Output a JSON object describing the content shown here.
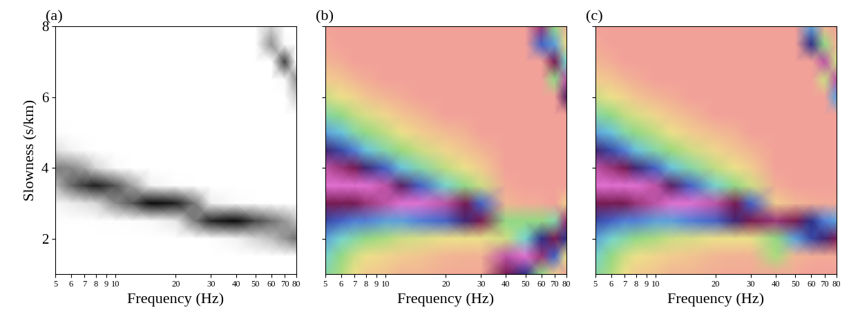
{
  "chart_data": [
    {
      "type": "heatmap",
      "title": "(a)",
      "xlabel": "Frequency (Hz)",
      "ylabel": "Slowness (s/km)",
      "log": "x",
      "xlim": [
        5,
        80
      ],
      "ylim": [
        1,
        8
      ],
      "xticks": [
        5,
        6,
        7,
        8,
        9,
        10,
        20,
        30,
        40,
        50,
        60,
        70,
        80
      ],
      "yticks": [
        2,
        4,
        6,
        8
      ],
      "zlim": [
        0,
        1
      ],
      "x": [
        5,
        6,
        7,
        8,
        10,
        12,
        15,
        20,
        25,
        30,
        40,
        50,
        60,
        70,
        80
      ],
      "y": [
        1,
        1.5,
        2,
        2.5,
        3,
        3.5,
        4,
        4.5,
        5,
        5.5,
        6,
        6.5,
        7,
        7.5,
        8
      ],
      "cells": [
        [
          0,
          0,
          0,
          0,
          0,
          0,
          0,
          0,
          0,
          0,
          0,
          0,
          0,
          0,
          0
        ],
        [
          0,
          0,
          0,
          0,
          0,
          0,
          0,
          0,
          0,
          0,
          0,
          0,
          0,
          0,
          0
        ],
        [
          0,
          0,
          0,
          0,
          0,
          0,
          0,
          0,
          0,
          0.01,
          0.1,
          0.26,
          0.37,
          0.5,
          0.64
        ],
        [
          0,
          0.01,
          0,
          0.01,
          0.02,
          0.02,
          0.04,
          0.17,
          0.6,
          0.88,
          0.97,
          0.78,
          0.64,
          0.5,
          0.37
        ],
        [
          0.06,
          0.15,
          0.2,
          0.26,
          0.54,
          0.72,
          0.97,
          0.9,
          0.6,
          0.13,
          0.03,
          0.01,
          0,
          0,
          0
        ],
        [
          0.39,
          0.66,
          0.82,
          0.9,
          0.74,
          0.48,
          0.1,
          0.02,
          0,
          0,
          0,
          0,
          0,
          0,
          0
        ],
        [
          0.58,
          0.55,
          0.45,
          0.26,
          0.04,
          0,
          0,
          0,
          0,
          0,
          0,
          0,
          0,
          0,
          0
        ],
        [
          0.22,
          0.09,
          0.03,
          0,
          0,
          0,
          0,
          0,
          0,
          0,
          0,
          0,
          0,
          0,
          0
        ],
        [
          0.02,
          0,
          0,
          0,
          0,
          0,
          0,
          0,
          0,
          0,
          0,
          0,
          0,
          0,
          0
        ],
        [
          0,
          0,
          0,
          0,
          0,
          0,
          0,
          0,
          0,
          0,
          0,
          0,
          0,
          0,
          0
        ],
        [
          0,
          0,
          0,
          0,
          0,
          0,
          0,
          0,
          0,
          0,
          0,
          0,
          0,
          0,
          0.3
        ],
        [
          0,
          0,
          0,
          0,
          0,
          0,
          0,
          0,
          0,
          0,
          0,
          0,
          0,
          0.05,
          0.51
        ],
        [
          0,
          0,
          0,
          0,
          0,
          0,
          0,
          0,
          0,
          0,
          0,
          0,
          0,
          0.8,
          0
        ],
        [
          0,
          0,
          0,
          0,
          0,
          0,
          0,
          0,
          0,
          0,
          0,
          0,
          0.51,
          0.05,
          0
        ],
        [
          0,
          0,
          0,
          0,
          0,
          0,
          0,
          0,
          0,
          0,
          0,
          0,
          0.3,
          0,
          0
        ]
      ]
    },
    {
      "type": "heatmap",
      "title": "(b)",
      "xlabel": "Frequency (Hz)",
      "tick_labels": "x",
      "log": "x",
      "xlim": [
        5,
        80
      ],
      "ylim": [
        1,
        8
      ],
      "xticks": [
        5,
        6,
        7,
        8,
        9,
        10,
        20,
        30,
        40,
        50,
        60,
        70,
        80
      ],
      "yticks": [
        2,
        4,
        6,
        8
      ],
      "zlim": [
        0,
        1
      ],
      "x": [
        5,
        6,
        7,
        8,
        10,
        12,
        15,
        20,
        25,
        30,
        40,
        50,
        60,
        70,
        80
      ],
      "y": [
        1,
        1.5,
        2,
        2.5,
        3,
        3.5,
        4,
        4.5,
        5,
        5.5,
        6,
        6.5,
        7,
        7.5,
        8
      ],
      "cells": [
        [
          0.35,
          0.25,
          0.15,
          0.1,
          0.08,
          0.05,
          0.05,
          0.03,
          0.02,
          0.02,
          0.85,
          0.7,
          0.3,
          0.1,
          0.02
        ],
        [
          0.4,
          0.3,
          0.2,
          0.15,
          0.12,
          0.1,
          0.08,
          0.05,
          0.04,
          0.04,
          0.95,
          1,
          0.9,
          0.6,
          0.15
        ],
        [
          0.5,
          0.4,
          0.35,
          0.3,
          0.25,
          0.2,
          0.18,
          0.15,
          0.15,
          0.15,
          0.2,
          0.4,
          0.7,
          0.85,
          0.7
        ],
        [
          0.65,
          0.6,
          0.55,
          0.55,
          0.5,
          0.5,
          0.55,
          0.6,
          0.75,
          0.85,
          0.3,
          0.3,
          0.3,
          0.35,
          0.9
        ],
        [
          0.85,
          0.85,
          0.85,
          0.9,
          0.95,
          1,
          1,
          0.95,
          0.85,
          0.6,
          0.05,
          0.03,
          0.02,
          0,
          0.1
        ],
        [
          1,
          1,
          1,
          1,
          0.95,
          0.8,
          0.6,
          0.4,
          0.3,
          0.2,
          0.02,
          0,
          0,
          0,
          0
        ],
        [
          0.95,
          0.9,
          0.85,
          0.75,
          0.6,
          0.45,
          0.35,
          0.22,
          0.15,
          0.1,
          0,
          0,
          0,
          0,
          0
        ],
        [
          0.75,
          0.65,
          0.55,
          0.45,
          0.35,
          0.28,
          0.2,
          0.12,
          0.08,
          0.05,
          0,
          0,
          0,
          0,
          0
        ],
        [
          0.5,
          0.45,
          0.35,
          0.3,
          0.22,
          0.15,
          0.1,
          0.06,
          0.04,
          0,
          0,
          0,
          0,
          0,
          0
        ],
        [
          0.35,
          0.3,
          0.22,
          0.18,
          0.12,
          0.08,
          0.05,
          0,
          0,
          0,
          0,
          0,
          0,
          0,
          0
        ],
        [
          0.2,
          0.15,
          0.12,
          0.08,
          0.05,
          0.03,
          0,
          0,
          0,
          0,
          0,
          0,
          0,
          0,
          0.8
        ],
        [
          0.1,
          0.08,
          0.05,
          0.03,
          0,
          0,
          0,
          0,
          0,
          0,
          0,
          0,
          0,
          0.3,
          0.95
        ],
        [
          0.05,
          0.03,
          0,
          0,
          0,
          0,
          0,
          0,
          0,
          0,
          0,
          0,
          0,
          0.85,
          0.4
        ],
        [
          0.02,
          0,
          0,
          0,
          0,
          0,
          0,
          0,
          0,
          0,
          0,
          0,
          0.6,
          0.5,
          0.15
        ],
        [
          0,
          0,
          0,
          0,
          0,
          0,
          0,
          0,
          0,
          0,
          0,
          0,
          0.9,
          0.3,
          0.05
        ]
      ]
    },
    {
      "type": "heatmap",
      "title": "(c)",
      "xlabel": "Frequency (Hz)",
      "tick_labels": "x",
      "log": "x",
      "xlim": [
        5,
        80
      ],
      "ylim": [
        1,
        8
      ],
      "xticks": [
        5,
        6,
        7,
        8,
        9,
        10,
        20,
        30,
        40,
        50,
        60,
        70,
        80
      ],
      "yticks": [
        2,
        4,
        6,
        8
      ],
      "zlim": [
        0,
        1
      ],
      "x": [
        5,
        6,
        7,
        8,
        10,
        12,
        15,
        20,
        25,
        30,
        40,
        50,
        60,
        70,
        80
      ],
      "y": [
        1,
        1.5,
        2,
        2.5,
        3,
        3.5,
        4,
        4.5,
        5,
        5.5,
        6,
        6.5,
        7,
        7.5,
        8
      ],
      "cells": [
        [
          0.35,
          0.25,
          0.15,
          0.1,
          0.08,
          0.05,
          0.05,
          0.03,
          0.02,
          0.02,
          0.02,
          0.02,
          0,
          0,
          0
        ],
        [
          0.4,
          0.3,
          0.2,
          0.15,
          0.12,
          0.1,
          0.08,
          0.05,
          0.04,
          0.04,
          0.25,
          0.05,
          0.03,
          0.02,
          0.02
        ],
        [
          0.5,
          0.4,
          0.35,
          0.3,
          0.25,
          0.2,
          0.18,
          0.15,
          0.15,
          0.15,
          0.3,
          0.5,
          0.65,
          0.75,
          0.85
        ],
        [
          0.65,
          0.6,
          0.55,
          0.55,
          0.5,
          0.5,
          0.55,
          0.6,
          0.75,
          0.85,
          0.9,
          0.85,
          0.7,
          0.55,
          0.5
        ],
        [
          0.85,
          0.85,
          0.85,
          0.9,
          0.95,
          1,
          1,
          0.95,
          0.85,
          0.6,
          0.1,
          0.05,
          0.03,
          0.02,
          0.02
        ],
        [
          1,
          1,
          1,
          1,
          0.95,
          0.8,
          0.6,
          0.4,
          0.3,
          0.2,
          0.03,
          0,
          0,
          0,
          0
        ],
        [
          0.95,
          0.9,
          0.85,
          0.75,
          0.6,
          0.45,
          0.35,
          0.22,
          0.15,
          0.1,
          0,
          0,
          0,
          0,
          0
        ],
        [
          0.75,
          0.65,
          0.55,
          0.45,
          0.35,
          0.28,
          0.2,
          0.12,
          0.08,
          0.05,
          0,
          0,
          0,
          0,
          0
        ],
        [
          0.5,
          0.45,
          0.35,
          0.3,
          0.22,
          0.15,
          0.1,
          0.06,
          0.04,
          0,
          0,
          0,
          0,
          0,
          0
        ],
        [
          0.35,
          0.3,
          0.22,
          0.18,
          0.12,
          0.08,
          0.05,
          0,
          0,
          0,
          0,
          0,
          0,
          0,
          0
        ],
        [
          0.2,
          0.15,
          0.12,
          0.08,
          0.05,
          0.03,
          0,
          0,
          0,
          0,
          0,
          0,
          0,
          0,
          0.5
        ],
        [
          0.1,
          0.08,
          0.05,
          0.03,
          0,
          0,
          0,
          0,
          0,
          0,
          0,
          0,
          0,
          0.2,
          0.95
        ],
        [
          0.05,
          0.03,
          0,
          0,
          0,
          0,
          0,
          0,
          0,
          0,
          0,
          0,
          0,
          0.95,
          0.2
        ],
        [
          0.02,
          0,
          0,
          0,
          0,
          0,
          0,
          0,
          0,
          0,
          0,
          0,
          0.7,
          0.3,
          0.05
        ],
        [
          0,
          0,
          0,
          0,
          0,
          0,
          0,
          0,
          0,
          0,
          0,
          0,
          0.5,
          0.05,
          0
        ]
      ]
    }
  ]
}
